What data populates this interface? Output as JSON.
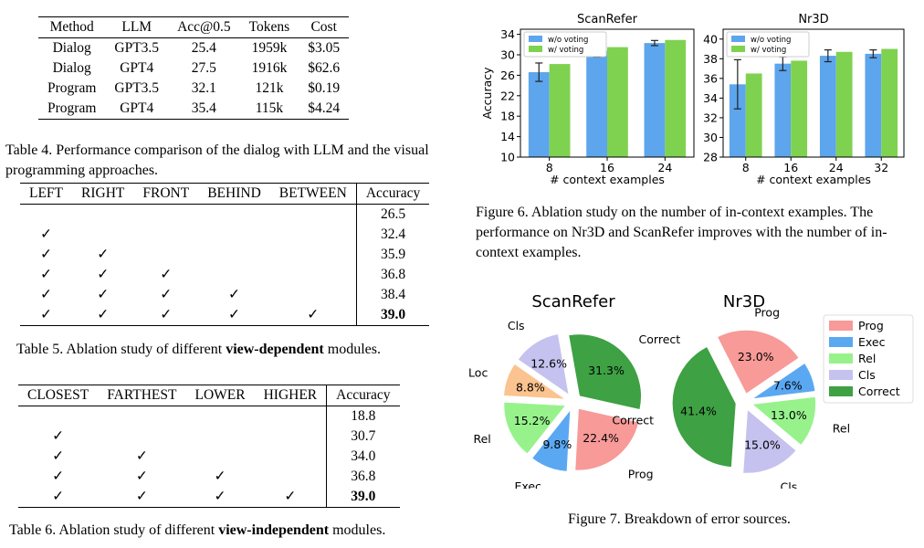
{
  "table4": {
    "headers": [
      "Method",
      "LLM",
      "Acc@0.5",
      "Tokens",
      "Cost"
    ],
    "rows": [
      [
        "Dialog",
        "GPT3.5",
        "25.4",
        "1959k",
        "$3.05"
      ],
      [
        "Dialog",
        "GPT4",
        "27.5",
        "1916k",
        "$62.6"
      ],
      [
        "Program",
        "GPT3.5",
        "32.1",
        "121k",
        "$0.19"
      ],
      [
        "Program",
        "GPT4",
        "35.4",
        "115k",
        "$4.24"
      ]
    ],
    "caption": "Table 4. Performance comparison of the dialog with LLM and the visual programming approaches."
  },
  "table5": {
    "headers": [
      "LEFT",
      "RIGHT",
      "FRONT",
      "BEHIND",
      "BETWEEN",
      "Accuracy"
    ],
    "check_symbol": "✓",
    "rows": [
      {
        "checks": [
          false,
          false,
          false,
          false,
          false
        ],
        "acc": "26.5"
      },
      {
        "checks": [
          true,
          false,
          false,
          false,
          false
        ],
        "acc": "32.4"
      },
      {
        "checks": [
          true,
          true,
          false,
          false,
          false
        ],
        "acc": "35.9"
      },
      {
        "checks": [
          true,
          true,
          true,
          false,
          false
        ],
        "acc": "36.8"
      },
      {
        "checks": [
          true,
          true,
          true,
          true,
          false
        ],
        "acc": "38.4"
      },
      {
        "checks": [
          true,
          true,
          true,
          true,
          true
        ],
        "acc": "39.0",
        "bold": true
      }
    ],
    "caption_pre": "Table 5. Ablation study of different ",
    "caption_bold": "view-dependent",
    "caption_post": " modules."
  },
  "table6": {
    "headers": [
      "CLOSEST",
      "FARTHEST",
      "LOWER",
      "HIGHER",
      "Accuracy"
    ],
    "check_symbol": "✓",
    "rows": [
      {
        "checks": [
          false,
          false,
          false,
          false
        ],
        "acc": "18.8"
      },
      {
        "checks": [
          true,
          false,
          false,
          false
        ],
        "acc": "30.7"
      },
      {
        "checks": [
          true,
          true,
          false,
          false
        ],
        "acc": "34.0"
      },
      {
        "checks": [
          true,
          true,
          true,
          false
        ],
        "acc": "36.8"
      },
      {
        "checks": [
          true,
          true,
          true,
          true
        ],
        "acc": "39.0",
        "bold": true
      }
    ],
    "caption_pre": "Table 6. Ablation study of different ",
    "caption_bold": "view-independent",
    "caption_post": " modules."
  },
  "figure6": {
    "caption": "Figure 6. Ablation study on the number of in-context examples. The performance on Nr3D and ScanRefer improves with the number of in-context examples.",
    "colors": {
      "w/o voting": "#5da5ec",
      "w/ voting": "#7fd24f"
    },
    "charts": [
      {
        "type": "bar",
        "title": "ScanRefer",
        "xlabel": "# context examples",
        "ylabel": "Accuracy",
        "categories": [
          "8",
          "16",
          "24"
        ],
        "ylim": [
          10,
          35
        ],
        "yticks": [
          "10",
          "14",
          "18",
          "22",
          "26",
          "30",
          "34"
        ],
        "legend_position": "upper-left",
        "series": [
          {
            "name": "w/o voting",
            "values": [
              26.6,
              30.8,
              32.3
            ],
            "errors": [
              1.8,
              1.2,
              0.5
            ]
          },
          {
            "name": "w/ voting",
            "values": [
              28.2,
              31.5,
              32.9
            ]
          }
        ]
      },
      {
        "type": "bar",
        "title": "Nr3D",
        "xlabel": "# context examples",
        "ylabel": "",
        "categories": [
          "8",
          "16",
          "24",
          "32"
        ],
        "ylim": [
          28,
          41
        ],
        "yticks": [
          "28",
          "30",
          "32",
          "34",
          "36",
          "38",
          "40"
        ],
        "legend_position": "upper-left",
        "series": [
          {
            "name": "w/o voting",
            "values": [
              35.4,
              37.5,
              38.3,
              38.5
            ],
            "errors": [
              2.5,
              0.7,
              0.6,
              0.4
            ]
          },
          {
            "name": "w/ voting",
            "values": [
              36.5,
              37.8,
              38.7,
              39.0
            ]
          }
        ]
      }
    ]
  },
  "figure7": {
    "caption": "Figure 7. Breakdown of error sources.",
    "legend": [
      {
        "name": "Prog",
        "color": "#f79a98"
      },
      {
        "name": "Exec",
        "color": "#5aa8f2"
      },
      {
        "name": "Rel",
        "color": "#97f28c"
      },
      {
        "name": "Cls",
        "color": "#c5c2ef"
      },
      {
        "name": "Correct",
        "color": "#3ea143"
      }
    ],
    "charts": [
      {
        "type": "pie",
        "title": "ScanRefer",
        "slices": [
          {
            "label": "Correct",
            "value": 31.3,
            "pct": "31.3%",
            "color": "#3ea143"
          },
          {
            "label": "Prog",
            "value": 22.4,
            "pct": "22.4%",
            "color": "#f79a98"
          },
          {
            "label": "Exec",
            "value": 9.8,
            "pct": "9.8%",
            "color": "#5aa8f2"
          },
          {
            "label": "Rel",
            "value": 15.2,
            "pct": "15.2%",
            "color": "#97f28c"
          },
          {
            "label": "Loc",
            "value": 8.8,
            "pct": "8.8%",
            "color": "#fbc38f"
          },
          {
            "label": "Cls",
            "value": 12.6,
            "pct": "12.6%",
            "color": "#c5c2ef"
          }
        ]
      },
      {
        "type": "pie",
        "title": "Nr3D",
        "slices": [
          {
            "label": "Prog",
            "value": 23.0,
            "pct": "23.0%",
            "color": "#f79a98"
          },
          {
            "label": "Exec",
            "value": 7.6,
            "pct": "7.6%",
            "color": "#5aa8f2"
          },
          {
            "label": "Rel",
            "value": 13.0,
            "pct": "13.0%",
            "color": "#97f28c"
          },
          {
            "label": "Cls",
            "value": 15.0,
            "pct": "15.0%",
            "color": "#c5c2ef"
          },
          {
            "label": "Correct",
            "value": 41.4,
            "pct": "41.4%",
            "color": "#3ea143"
          }
        ]
      }
    ]
  }
}
